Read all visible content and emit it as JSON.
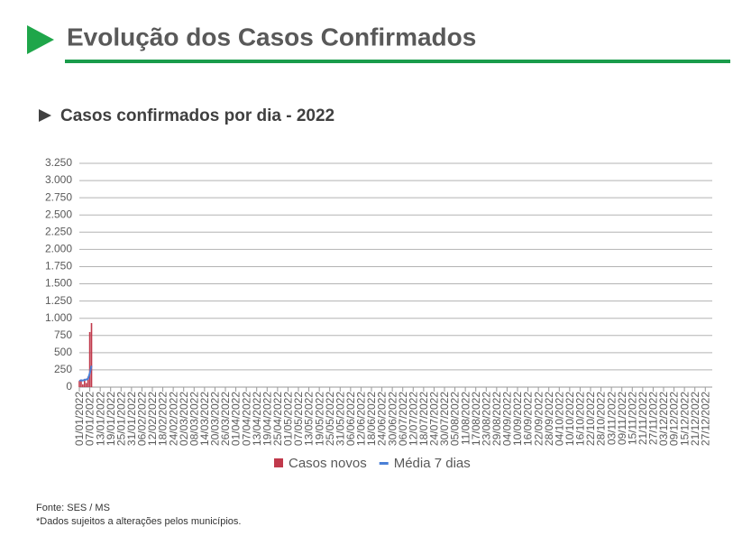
{
  "header": {
    "title": "Evolução dos Casos Confirmados"
  },
  "chart_data": {
    "type": "bar",
    "title": "Casos confirmados por dia - 2022",
    "xlim": [
      "01/01/2022",
      "31/12/2022"
    ],
    "xticks": [
      "01/01/2022",
      "07/01/2022",
      "13/01/2022",
      "19/01/2022",
      "25/01/2022",
      "31/01/2022",
      "06/02/2022",
      "12/02/2022",
      "18/02/2022",
      "24/02/2022",
      "02/03/2022",
      "08/03/2022",
      "14/03/2022",
      "20/03/2022",
      "26/03/2022",
      "01/04/2022",
      "07/04/2022",
      "13/04/2022",
      "19/04/2022",
      "25/04/2022",
      "01/05/2022",
      "07/05/2022",
      "13/05/2022",
      "19/05/2022",
      "25/05/2022",
      "31/05/2022",
      "06/06/2022",
      "12/06/2022",
      "18/06/2022",
      "24/06/2022",
      "30/06/2022",
      "06/07/2022",
      "12/07/2022",
      "18/07/2022",
      "24/07/2022",
      "30/07/2022",
      "05/08/2022",
      "11/08/2022",
      "17/08/2022",
      "23/08/2022",
      "29/08/2022",
      "04/09/2022",
      "10/09/2022",
      "16/09/2022",
      "22/09/2022",
      "28/09/2022",
      "04/10/2022",
      "10/10/2022",
      "16/10/2022",
      "22/10/2022",
      "28/10/2022",
      "03/11/2022",
      "09/11/2022",
      "15/11/2022",
      "21/11/2022",
      "27/11/2022",
      "03/12/2022",
      "09/12/2022",
      "15/12/2022",
      "21/12/2022",
      "27/12/2022"
    ],
    "x": [
      "01/01/2022",
      "02/01/2022",
      "03/01/2022",
      "04/01/2022",
      "05/01/2022",
      "06/01/2022",
      "07/01/2022",
      "08/01/2022"
    ],
    "series": [
      {
        "name": "Casos novos",
        "type": "bar",
        "color": "#c0394b",
        "values": [
          90,
          110,
          40,
          120,
          60,
          150,
          800,
          930
        ]
      },
      {
        "name": "Média 7 dias",
        "type": "line",
        "color": "#4a7fd6",
        "values": [
          90,
          100,
          95,
          105,
          110,
          120,
          200,
          310
        ]
      }
    ],
    "ylim": [
      0,
      3250
    ],
    "yticks": [
      0,
      250,
      500,
      750,
      {
        "value": 1000,
        "label": "1.000"
      },
      {
        "value": 1250,
        "label": "1.250"
      },
      {
        "value": 1500,
        "label": "1.500"
      },
      {
        "value": 1750,
        "label": "1.750"
      },
      {
        "value": 2000,
        "label": "2.000"
      },
      {
        "value": 2250,
        "label": "2.250"
      },
      {
        "value": 2500,
        "label": "2.500"
      },
      {
        "value": 2750,
        "label": "2.750"
      },
      {
        "value": 3000,
        "label": "3.000"
      },
      {
        "value": 3250,
        "label": "3.250"
      }
    ],
    "grid": true,
    "legend": "bottom"
  },
  "footer": {
    "source": "Fonte: SES / MS",
    "note": "*Dados sujeitos a alterações pelos municípios."
  }
}
